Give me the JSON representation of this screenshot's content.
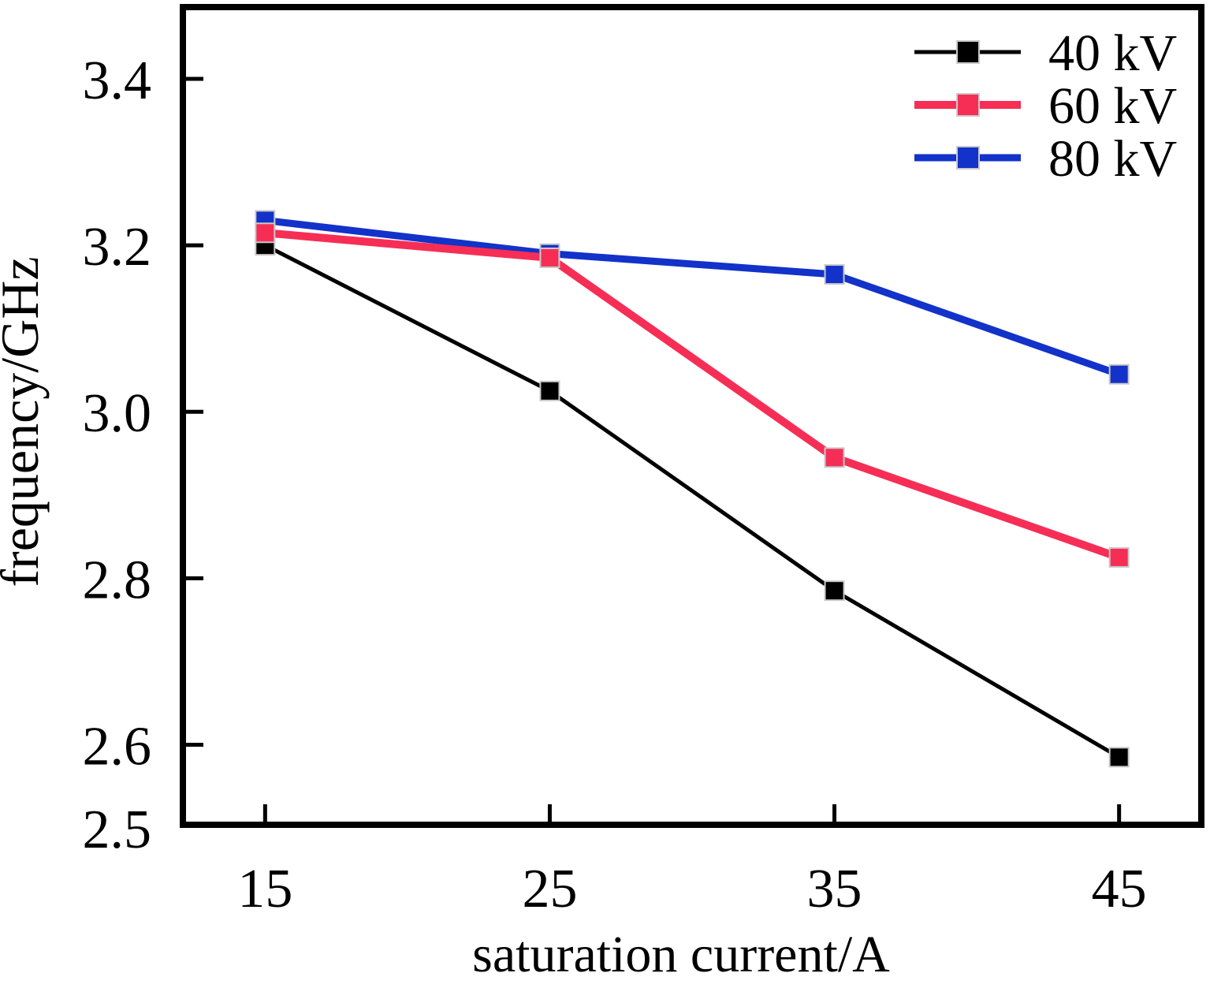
{
  "figure": {
    "background": "#ffffff",
    "frame_color": "#000000"
  },
  "chart_data": {
    "type": "line",
    "title": "",
    "xlabel": "saturation current/A",
    "ylabel": "frequency/GHz",
    "xlim": [
      12,
      48
    ],
    "ylim": [
      2.5,
      3.49
    ],
    "grid": false,
    "legend_position": "top-right-inside",
    "axis_color": "#000000",
    "x": [
      15,
      25,
      35,
      45
    ],
    "xtick_labels": [
      "15",
      "25",
      "35",
      "45"
    ],
    "yticks": [
      {
        "value": 2.5,
        "label": "2.5",
        "mark": false
      },
      {
        "value": 2.6,
        "label": "2.6",
        "mark": true
      },
      {
        "value": 2.8,
        "label": "2.8",
        "mark": true
      },
      {
        "value": 3.0,
        "label": "3.0",
        "mark": true
      },
      {
        "value": 3.2,
        "label": "3.2",
        "mark": true
      },
      {
        "value": 3.4,
        "label": "3.4",
        "mark": true
      }
    ],
    "series": [
      {
        "name": "40 kV",
        "color": "#000000",
        "line_width": 5,
        "marker": "square",
        "z": 2,
        "values": [
          3.2,
          3.025,
          2.785,
          2.585
        ]
      },
      {
        "name": "60 kV",
        "color": "#f62e56",
        "line_width": 10,
        "marker": "square",
        "z": 3,
        "values": [
          3.215,
          3.185,
          2.945,
          2.825
        ]
      },
      {
        "name": "80 kV",
        "color": "#1232c9",
        "line_width": 9,
        "marker": "square",
        "z": 1,
        "values": [
          3.23,
          3.19,
          3.165,
          3.045
        ]
      }
    ],
    "marker_size": 24,
    "marker_edge_color": "#c9c9c9",
    "legend_labels": [
      "40 kV",
      "60 kV",
      "80 kV"
    ]
  }
}
